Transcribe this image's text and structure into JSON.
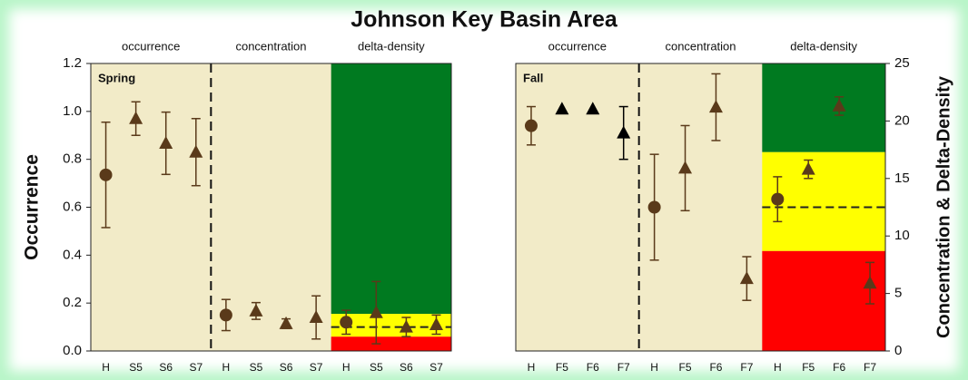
{
  "title": "Johnson Key Basin Area",
  "chart_data": [
    {
      "type": "scatter",
      "annotation": "Spring",
      "ylabel": "Occurrence",
      "ylim": [
        0,
        1.2
      ],
      "yticks": [
        {
          "value": 0,
          "label": "0.0"
        },
        0.2,
        0.4,
        0.6,
        0.8,
        {
          "value": 1,
          "label": "1.0"
        },
        1.2
      ],
      "groups": [
        {
          "name": "occurrence",
          "axis": "y",
          "categories": [
            "H",
            "S5",
            "S6",
            "S7"
          ],
          "values": [
            0.735,
            0.97,
            0.867,
            0.83
          ],
          "errors": [
            0.22,
            0.07,
            0.13,
            0.14
          ],
          "markers": [
            "circle",
            "triangle",
            "triangle",
            "triangle"
          ],
          "colors": [
            "#5a3a1a",
            "#5a3a1a",
            "#5a3a1a",
            "#5a3a1a"
          ]
        },
        {
          "name": "concentration",
          "axis": "y",
          "categories": [
            "H",
            "S5",
            "S6",
            "S7"
          ],
          "values": [
            0.15,
            0.167,
            0.114,
            0.14
          ],
          "errors": [
            0.065,
            0.035,
            0.02,
            0.09
          ],
          "markers": [
            "circle",
            "triangle",
            "triangle",
            "triangle"
          ],
          "colors": [
            "#5a3a1a",
            "#5a3a1a",
            "#5a3a1a",
            "#5a3a1a"
          ]
        },
        {
          "name": "delta-density",
          "axis": "y",
          "categories": [
            "H",
            "S5",
            "S6",
            "S7"
          ],
          "values": [
            0.12,
            0.16,
            0.1,
            0.11
          ],
          "errors": [
            0.05,
            0.13,
            0.04,
            0.04
          ],
          "markers": [
            "circle",
            "triangle",
            "triangle",
            "triangle"
          ],
          "colors": [
            "#5a3a1a",
            "#5a3a1a",
            "#5a3a1a",
            "#5a3a1a"
          ],
          "bands": [
            {
              "from": 0,
              "to": 0.06,
              "color": "#ff0000"
            },
            {
              "from": 0.06,
              "to": 0.155,
              "color": "#ffff00"
            },
            {
              "from": 0.155,
              "to": 1.2,
              "color": "#007a20"
            }
          ],
          "reference": 0.1
        }
      ]
    },
    {
      "type": "scatter",
      "annotation": "Fall",
      "y2label": "Concentration & Delta-Density",
      "ylim": [
        0,
        1.2
      ],
      "y2lim": [
        0,
        25
      ],
      "y2ticks": [
        0,
        5,
        10,
        15,
        20,
        25
      ],
      "groups": [
        {
          "name": "occurrence",
          "axis": "y",
          "categories": [
            "H",
            "F5",
            "F6",
            "F7"
          ],
          "values": [
            0.94,
            1.01,
            1.01,
            0.91
          ],
          "errors": [
            0.08,
            null,
            null,
            0.11
          ],
          "markers": [
            "circle",
            "triangle",
            "triangle",
            "triangle"
          ],
          "colors": [
            "#5a3a1a",
            "#000000",
            "#000000",
            "#000000"
          ]
        },
        {
          "name": "concentration",
          "axis": "y2",
          "categories": [
            "H",
            "F5",
            "F6",
            "F7"
          ],
          "values": [
            12.5,
            15.9,
            21.2,
            6.3
          ],
          "errors": [
            4.6,
            3.7,
            2.9,
            1.9
          ],
          "markers": [
            "circle",
            "triangle",
            "triangle",
            "triangle"
          ],
          "colors": [
            "#5a3a1a",
            "#5a3a1a",
            "#5a3a1a",
            "#5a3a1a"
          ]
        },
        {
          "name": "delta-density",
          "axis": "y2",
          "categories": [
            "H",
            "F5",
            "F6",
            "F7"
          ],
          "values": [
            13.2,
            15.8,
            21.3,
            5.9
          ],
          "errors": [
            1.95,
            0.8,
            0.8,
            1.8
          ],
          "markers": [
            "circle",
            "triangle",
            "triangle",
            "triangle"
          ],
          "colors": [
            "#5a3a1a",
            "#5a3a1a",
            "#5a3a1a",
            "#5a3a1a"
          ],
          "bands": [
            {
              "from": 0,
              "to": 8.7,
              "color": "#ff0000"
            },
            {
              "from": 8.7,
              "to": 17.3,
              "color": "#ffff00"
            },
            {
              "from": 17.3,
              "to": 25,
              "color": "#007a20"
            }
          ],
          "reference": 12.5
        }
      ]
    }
  ]
}
